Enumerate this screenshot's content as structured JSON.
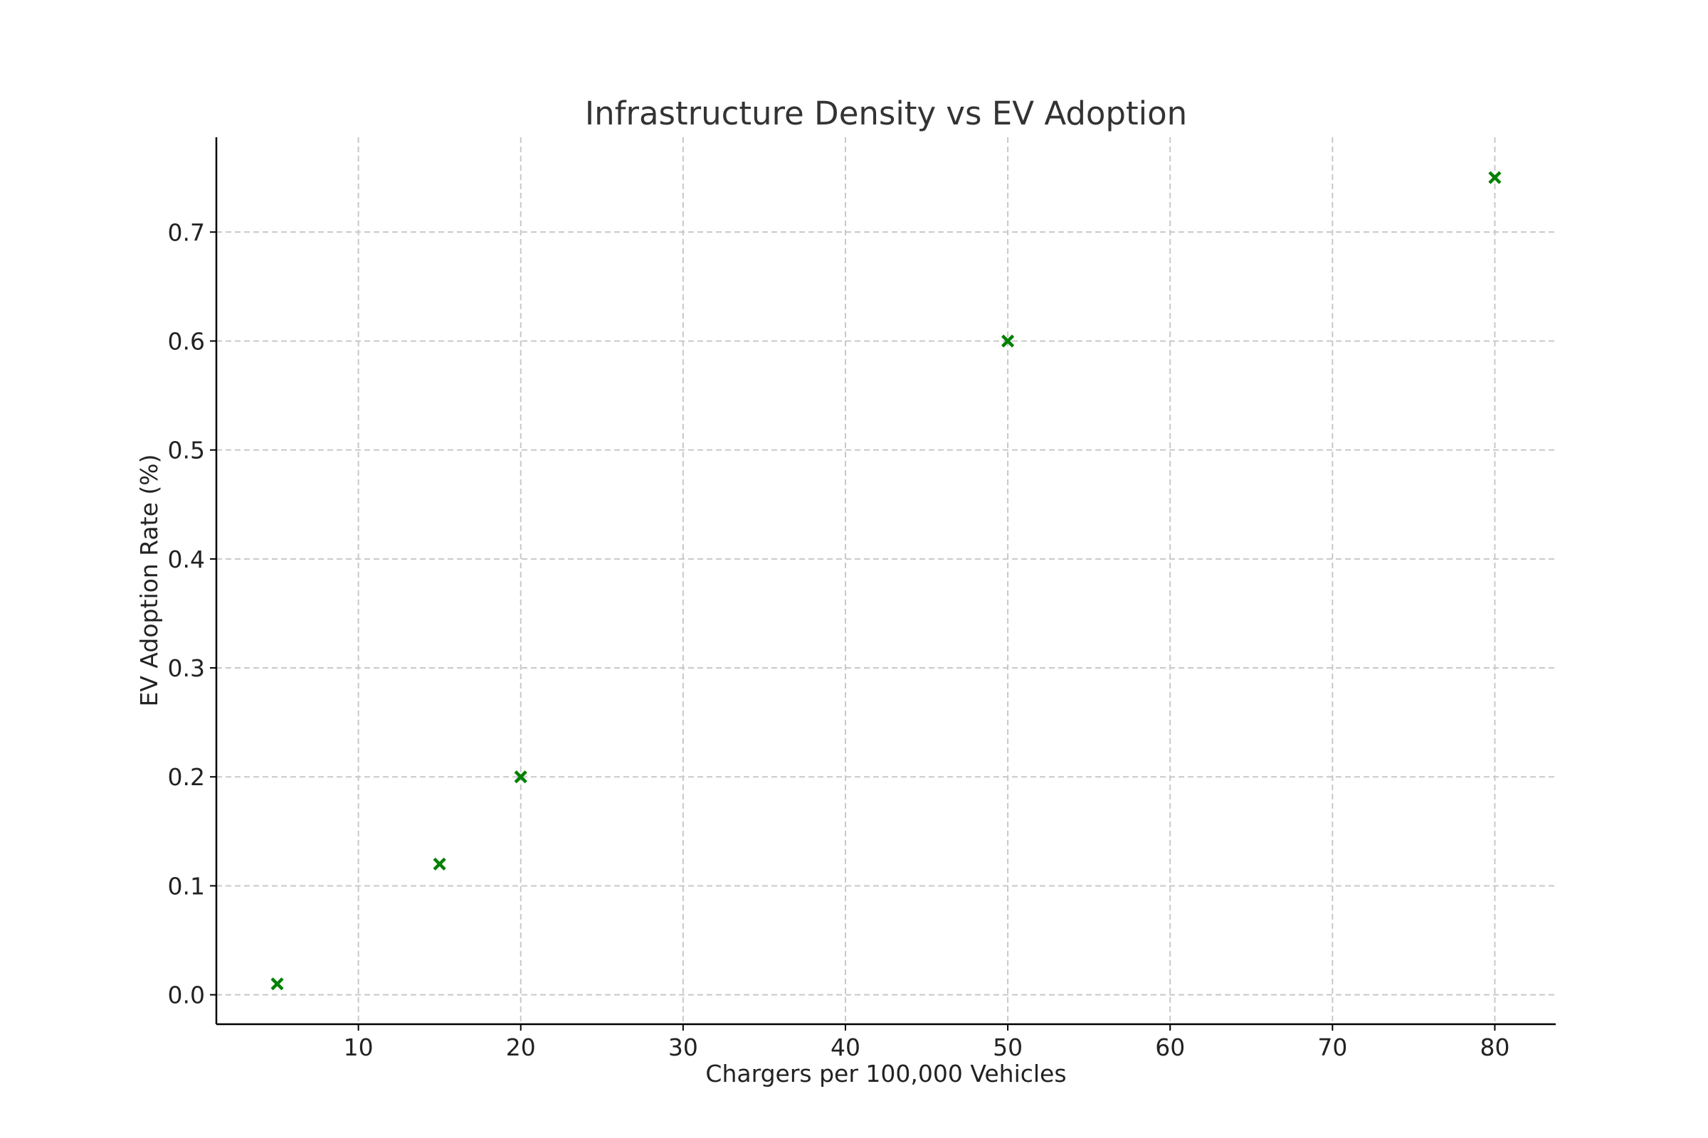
{
  "chart_data": {
    "type": "scatter",
    "title": "Infrastructure Density vs EV Adoption",
    "xlabel": "Chargers per 100,000 Vehicles",
    "ylabel": "EV Adoption Rate (%)",
    "xlim": [
      1.25,
      83.75
    ],
    "ylim": [
      -0.027,
      0.787
    ],
    "xticks": [
      10,
      20,
      30,
      40,
      50,
      60,
      70,
      80
    ],
    "xtick_labels": [
      "10",
      "20",
      "30",
      "40",
      "50",
      "60",
      "70",
      "80"
    ],
    "yticks": [
      0.0,
      0.1,
      0.2,
      0.3,
      0.4,
      0.5,
      0.6,
      0.7
    ],
    "ytick_labels": [
      "0.0",
      "0.1",
      "0.2",
      "0.3",
      "0.4",
      "0.5",
      "0.6",
      "0.7"
    ],
    "grid": true,
    "marker": "x",
    "color": "#008000",
    "series": [
      {
        "points": [
          {
            "x": 5,
            "y": 0.01
          },
          {
            "x": 15,
            "y": 0.12
          },
          {
            "x": 20,
            "y": 0.2
          },
          {
            "x": 50,
            "y": 0.6
          },
          {
            "x": 80,
            "y": 0.75
          }
        ]
      }
    ]
  }
}
